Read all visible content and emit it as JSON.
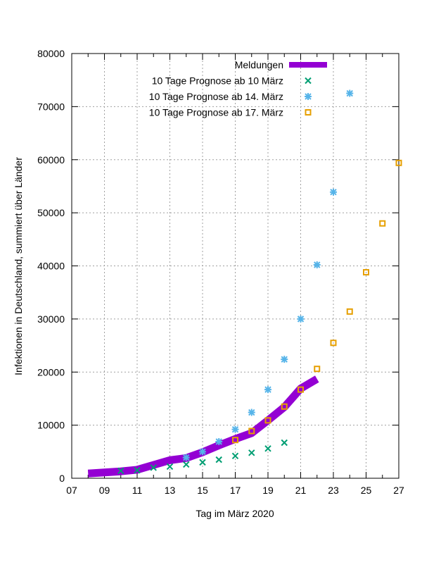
{
  "chart_data": {
    "type": "scatter",
    "title": "",
    "xlabel": "Tag im März 2020",
    "ylabel": "Infektionen in Deutschland, summiert über Länder",
    "xlim": [
      7,
      27
    ],
    "ylim": [
      0,
      80000
    ],
    "xticks": [
      7,
      9,
      11,
      13,
      15,
      17,
      19,
      21,
      23,
      25,
      27
    ],
    "xtick_labels": [
      "07",
      "09",
      "11",
      "13",
      "15",
      "17",
      "19",
      "21",
      "23",
      "25",
      "27"
    ],
    "yticks": [
      0,
      10000,
      20000,
      30000,
      40000,
      50000,
      60000,
      70000,
      80000
    ],
    "ytick_labels": [
      "0",
      "10000",
      "20000",
      "30000",
      "40000",
      "50000",
      "60000",
      "70000",
      "80000"
    ],
    "grid": true,
    "legend_position": "top-right",
    "series": [
      {
        "name": "Meldungen",
        "style": "line",
        "color": "#9400d3",
        "x": [
          8,
          9,
          10,
          11,
          12,
          13,
          14,
          15,
          16,
          17,
          18,
          19,
          20,
          21,
          22
        ],
        "y": [
          900,
          1100,
          1300,
          1600,
          2500,
          3400,
          3800,
          4900,
          6200,
          7400,
          8500,
          10900,
          13400,
          16900,
          18700
        ]
      },
      {
        "name": "10 Tage Prognose ab 10 März",
        "style": "cross",
        "color": "#009e73",
        "x": [
          10,
          11,
          12,
          13,
          14,
          15,
          16,
          17,
          18,
          19,
          20
        ],
        "y": [
          1400,
          1500,
          2000,
          2200,
          2600,
          3000,
          3500,
          4200,
          4800,
          5600,
          6700
        ]
      },
      {
        "name": "10 Tage Prognose ab 14. März",
        "style": "star",
        "color": "#56b4e9",
        "x": [
          14,
          15,
          16,
          17,
          18,
          19,
          20,
          21,
          22,
          23,
          24
        ],
        "y": [
          3900,
          5000,
          6900,
          9200,
          12400,
          16700,
          22400,
          30000,
          40200,
          53900,
          72500
        ]
      },
      {
        "name": "10 Tage Prognose ab 17. März",
        "style": "square",
        "color": "#e69f00",
        "x": [
          17,
          18,
          19,
          20,
          21,
          22,
          23,
          24,
          25,
          26,
          27
        ],
        "y": [
          7200,
          8900,
          10900,
          13500,
          16700,
          20600,
          25500,
          31400,
          38800,
          48000,
          59400
        ]
      }
    ]
  }
}
